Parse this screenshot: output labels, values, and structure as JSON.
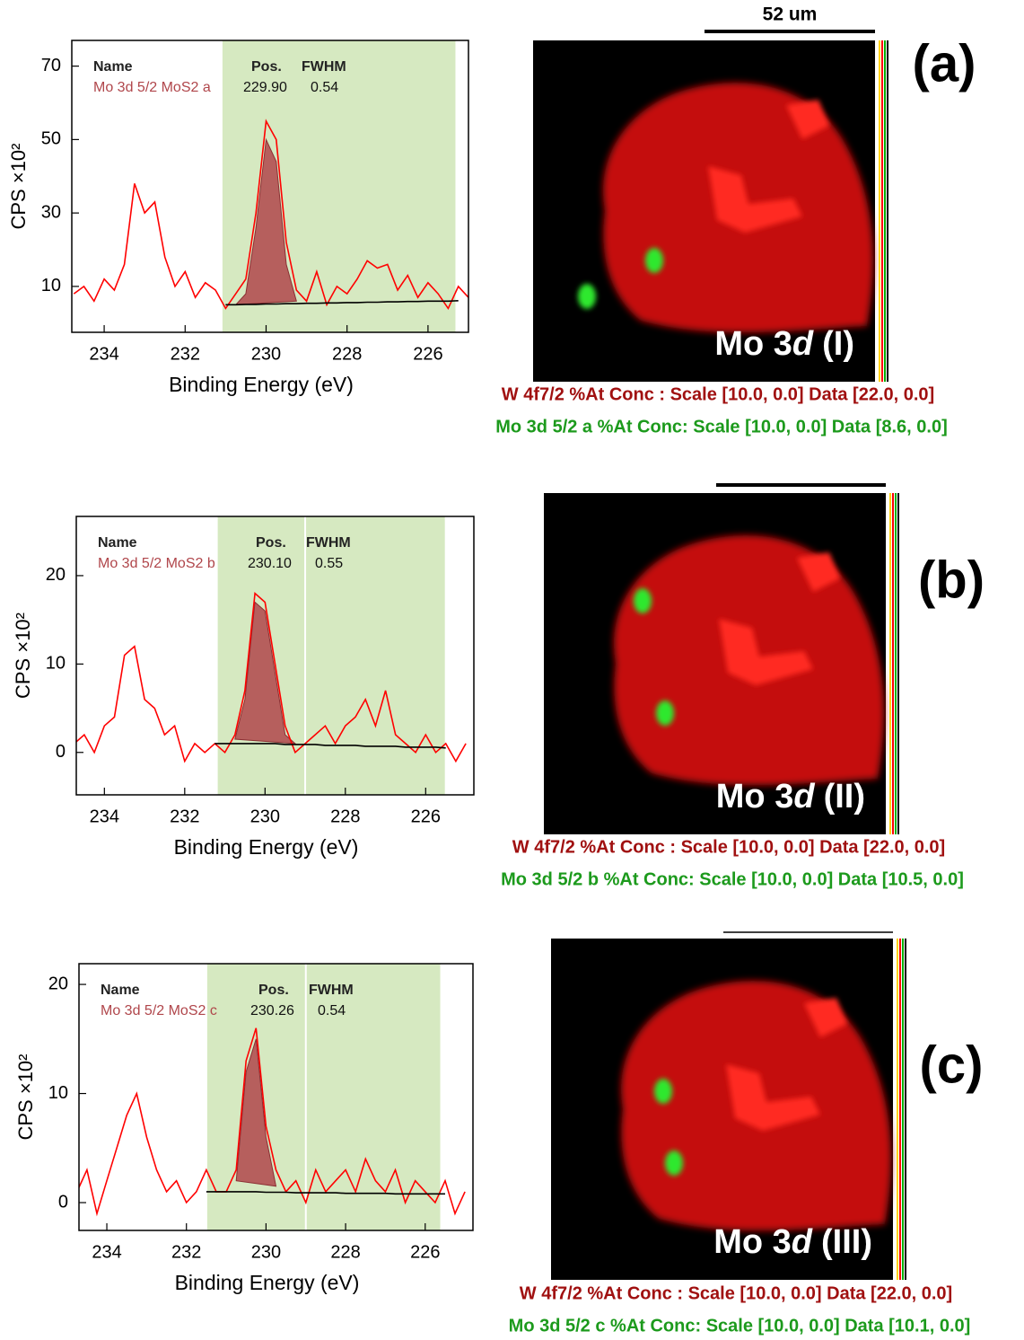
{
  "chart_data": [
    {
      "type": "line",
      "xlabel": "Binding Energy (eV)",
      "ylabel": "CPS ×10²",
      "xlim": [
        234.8,
        225
      ],
      "ylim": [
        -2.5,
        77
      ],
      "xticks": [
        234,
        232,
        230,
        228,
        226
      ],
      "yticks": [
        10,
        30,
        50,
        70
      ],
      "regions": [
        [
          231.1,
          225.3
        ]
      ],
      "table": {
        "columns": [
          "Name",
          "Pos.",
          "FWHM"
        ],
        "row": [
          "Mo 3d 5/2 MoS2 a",
          "229.90",
          "0.54"
        ]
      },
      "x": [
        234.75,
        234.5,
        234.25,
        234.0,
        233.75,
        233.5,
        233.25,
        233.0,
        232.75,
        232.5,
        232.25,
        232.0,
        231.75,
        231.5,
        231.25,
        231.0,
        230.75,
        230.5,
        230.25,
        230.0,
        229.75,
        229.5,
        229.25,
        229.0,
        228.75,
        228.5,
        228.25,
        228.0,
        227.75,
        227.5,
        227.25,
        227.0,
        226.75,
        226.5,
        226.25,
        226.0,
        225.75,
        225.5,
        225.25,
        225.0
      ],
      "values": [
        8,
        10,
        6,
        12,
        9,
        16,
        38,
        30,
        33,
        18,
        10,
        14,
        7,
        11,
        9,
        4,
        8,
        12,
        30,
        55,
        50,
        22,
        9,
        6,
        14,
        5,
        10,
        8,
        12,
        17,
        15,
        16,
        9,
        13,
        7,
        11,
        8,
        4,
        10,
        7
      ],
      "fit": [
        null,
        null,
        null,
        null,
        null,
        null,
        null,
        null,
        null,
        null,
        null,
        null,
        null,
        null,
        null,
        null,
        5,
        8,
        26,
        50,
        44,
        16,
        6,
        null,
        null,
        null,
        null,
        null,
        null,
        null,
        null,
        null,
        null,
        null,
        null,
        null,
        null,
        null,
        null,
        null
      ],
      "baseline": [
        null,
        null,
        null,
        null,
        null,
        null,
        null,
        null,
        null,
        null,
        null,
        null,
        null,
        null,
        null,
        5,
        5,
        5.1,
        5.1,
        5.2,
        5.2,
        5.3,
        5.3,
        5.4,
        5.4,
        5.5,
        5.5,
        5.6,
        5.6,
        5.7,
        5.7,
        5.8,
        5.8,
        5.9,
        5.9,
        6,
        6,
        6,
        6.1,
        null
      ]
    },
    {
      "type": "line",
      "xlabel": "Binding Energy (eV)",
      "ylabel": "CPS ×10²",
      "xlim": [
        234.7,
        224.8
      ],
      "ylim": [
        -4.8,
        26.7
      ],
      "xticks": [
        234,
        232,
        230,
        228,
        226
      ],
      "yticks": [
        0,
        10,
        20
      ],
      "regions": [
        [
          231.2,
          229.0
        ],
        [
          229.0,
          225.5
        ]
      ],
      "table": {
        "columns": [
          "Name",
          "Pos.",
          "FWHM"
        ],
        "row": [
          "Mo 3d 5/2 MoS2 b",
          "230.10",
          "0.55"
        ]
      },
      "x": [
        234.75,
        234.5,
        234.25,
        234.0,
        233.75,
        233.5,
        233.25,
        233.0,
        232.75,
        232.5,
        232.25,
        232.0,
        231.75,
        231.5,
        231.25,
        231.0,
        230.75,
        230.5,
        230.25,
        230.0,
        229.75,
        229.5,
        229.25,
        229.0,
        228.75,
        228.5,
        228.25,
        228.0,
        227.75,
        227.5,
        227.25,
        227.0,
        226.75,
        226.5,
        226.25,
        226.0,
        225.75,
        225.5,
        225.25,
        225.0
      ],
      "values": [
        1,
        2,
        0,
        3,
        4,
        11,
        12,
        6,
        5,
        2,
        3,
        -1,
        1,
        0,
        1,
        0,
        2,
        7,
        18,
        17,
        10,
        3,
        0,
        1,
        2,
        3,
        1,
        3,
        4,
        6,
        3,
        7,
        2,
        1,
        0,
        2,
        0,
        1,
        -1,
        1
      ],
      "fit": [
        null,
        null,
        null,
        null,
        null,
        null,
        null,
        null,
        null,
        null,
        null,
        null,
        null,
        null,
        null,
        null,
        1.5,
        6,
        17,
        16,
        9,
        2,
        1,
        null,
        null,
        null,
        null,
        null,
        null,
        null,
        null,
        null,
        null,
        null,
        null,
        null,
        null,
        null,
        null,
        null
      ],
      "baseline": [
        null,
        null,
        null,
        null,
        null,
        null,
        null,
        null,
        null,
        null,
        null,
        null,
        null,
        null,
        1,
        1,
        1,
        1,
        1,
        1,
        1,
        0.9,
        0.9,
        0.9,
        0.9,
        0.8,
        0.8,
        0.8,
        0.8,
        0.7,
        0.7,
        0.7,
        0.7,
        0.6,
        0.6,
        0.6,
        0.6,
        0.5,
        null,
        null
      ]
    },
    {
      "type": "line",
      "xlabel": "Binding Energy (eV)",
      "ylabel": "CPS ×10²",
      "xlim": [
        234.7,
        224.8
      ],
      "ylim": [
        -2.55,
        21.9
      ],
      "xticks": [
        234,
        232,
        230,
        228,
        226
      ],
      "yticks": [
        0,
        10,
        20
      ],
      "regions": [
        [
          231.5,
          229.0
        ],
        [
          229.0,
          225.6
        ]
      ],
      "table": {
        "columns": [
          "Name",
          "Pos.",
          "FWHM"
        ],
        "row": [
          "Mo 3d 5/2 MoS2  c",
          "230.26",
          "0.54"
        ]
      },
      "x": [
        234.75,
        234.5,
        234.25,
        234.0,
        233.75,
        233.5,
        233.25,
        233.0,
        232.75,
        232.5,
        232.25,
        232.0,
        231.75,
        231.5,
        231.25,
        231.0,
        230.75,
        230.5,
        230.25,
        230.0,
        229.75,
        229.5,
        229.25,
        229.0,
        228.75,
        228.5,
        228.25,
        228.0,
        227.75,
        227.5,
        227.25,
        227.0,
        226.75,
        226.5,
        226.25,
        226.0,
        225.75,
        225.5,
        225.25,
        225.0
      ],
      "values": [
        1,
        3,
        -1,
        2,
        5,
        8,
        10,
        6,
        3,
        1,
        2,
        0,
        1,
        3,
        1,
        1,
        3,
        13,
        16,
        7,
        3,
        1,
        2,
        0,
        3,
        1,
        2,
        3,
        1,
        4,
        2,
        1,
        3,
        0,
        2,
        1,
        0,
        2,
        -1,
        1
      ],
      "fit": [
        null,
        null,
        null,
        null,
        null,
        null,
        null,
        null,
        null,
        null,
        null,
        null,
        null,
        null,
        null,
        null,
        2,
        12,
        15,
        6,
        1.5,
        null,
        null,
        null,
        null,
        null,
        null,
        null,
        null,
        null,
        null,
        null,
        null,
        null,
        null,
        null,
        null,
        null,
        null,
        null
      ],
      "baseline": [
        null,
        null,
        null,
        null,
        null,
        null,
        null,
        null,
        null,
        null,
        null,
        null,
        null,
        1,
        1,
        1,
        1,
        1,
        1,
        0.95,
        0.95,
        0.95,
        0.9,
        0.9,
        0.9,
        0.9,
        0.9,
        0.85,
        0.85,
        0.85,
        0.85,
        0.85,
        0.8,
        0.8,
        0.8,
        0.8,
        0.8,
        0.8,
        null,
        null
      ]
    }
  ],
  "maps": [
    {
      "panel": "(a)",
      "label": {
        "text": "Mo 3",
        "italic": "d",
        "suffix": "(I)"
      },
      "scale_bar": "52 um",
      "captions": [
        "W 4f7/2 %At Conc : Scale [10.0, 0.0] Data [22.0, 0.0]",
        "Mo 3d 5/2 a %At Conc: Scale [10.0, 0.0] Data [8.6, 0.0]"
      ]
    },
    {
      "panel": "(b)",
      "label": {
        "text": "Mo 3",
        "italic": "d",
        "suffix": "(II)"
      },
      "captions": [
        "W 4f7/2 %At Conc : Scale [10.0, 0.0] Data [22.0, 0.0]",
        "Mo 3d 5/2 b %At Conc: Scale [10.0, 0.0] Data [10.5, 0.0]"
      ]
    },
    {
      "panel": "(c)",
      "label": {
        "text": "Mo 3",
        "italic": "d",
        "suffix": "(III)"
      },
      "captions": [
        "W 4f7/2 %At Conc : Scale [10.0, 0.0] Data [22.0, 0.0]",
        "Mo 3d 5/2 c %At Conc: Scale [10.0, 0.0] Data [10.1, 0.0]"
      ]
    }
  ]
}
